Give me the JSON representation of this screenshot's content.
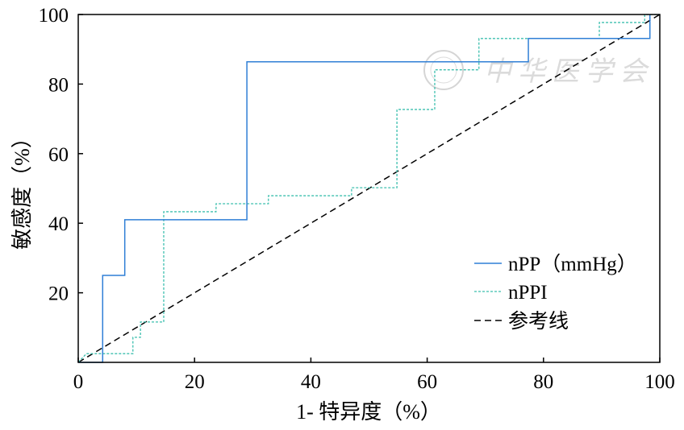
{
  "chart_data": {
    "type": "line",
    "title": "",
    "xlabel": "1- 特异度（%）",
    "ylabel": "敏感度（%）",
    "xlim": [
      0,
      100
    ],
    "ylim": [
      0,
      100
    ],
    "xticks": [
      "0",
      "20",
      "40",
      "60",
      "80",
      "100"
    ],
    "yticks": [
      "20",
      "40",
      "60",
      "80",
      "100"
    ],
    "grid": false,
    "legend_position": "bottom-right",
    "series": [
      {
        "name": "nPP（mmHg）",
        "style": "solid",
        "color": "#2f7fd6",
        "points": [
          [
            0,
            0
          ],
          [
            4.2,
            0
          ],
          [
            4.2,
            25
          ],
          [
            8.0,
            25
          ],
          [
            8.0,
            41
          ],
          [
            29.0,
            41
          ],
          [
            29.0,
            86.4
          ],
          [
            77.4,
            86.4
          ],
          [
            77.4,
            93.1
          ],
          [
            98.3,
            93.1
          ],
          [
            98.3,
            100
          ]
        ]
      },
      {
        "name": "nPPI",
        "style": "dashed",
        "color": "#3cbfae",
        "points": [
          [
            0,
            0
          ],
          [
            1.4,
            2.5
          ],
          [
            9.4,
            2.5
          ],
          [
            9.4,
            7.2
          ],
          [
            10.7,
            7.2
          ],
          [
            10.7,
            11.6
          ],
          [
            14.7,
            11.6
          ],
          [
            14.7,
            43.3
          ],
          [
            23.7,
            43.3
          ],
          [
            23.7,
            45.6
          ],
          [
            32.7,
            45.6
          ],
          [
            32.7,
            47.9
          ],
          [
            47.0,
            47.9
          ],
          [
            47.0,
            50.2
          ],
          [
            54.8,
            50.2
          ],
          [
            54.8,
            72.7
          ],
          [
            61.3,
            72.7
          ],
          [
            61.3,
            84.1
          ],
          [
            68.9,
            84.1
          ],
          [
            68.9,
            93.1
          ],
          [
            89.6,
            93.1
          ],
          [
            89.6,
            97.7
          ],
          [
            97.4,
            97.7
          ],
          [
            97.4,
            100
          ],
          [
            100,
            100
          ]
        ]
      },
      {
        "name": "参考线",
        "style": "long-dash",
        "color": "#000000",
        "points": [
          [
            0,
            0
          ],
          [
            100,
            100
          ]
        ]
      }
    ]
  },
  "watermark": "中华医学会"
}
